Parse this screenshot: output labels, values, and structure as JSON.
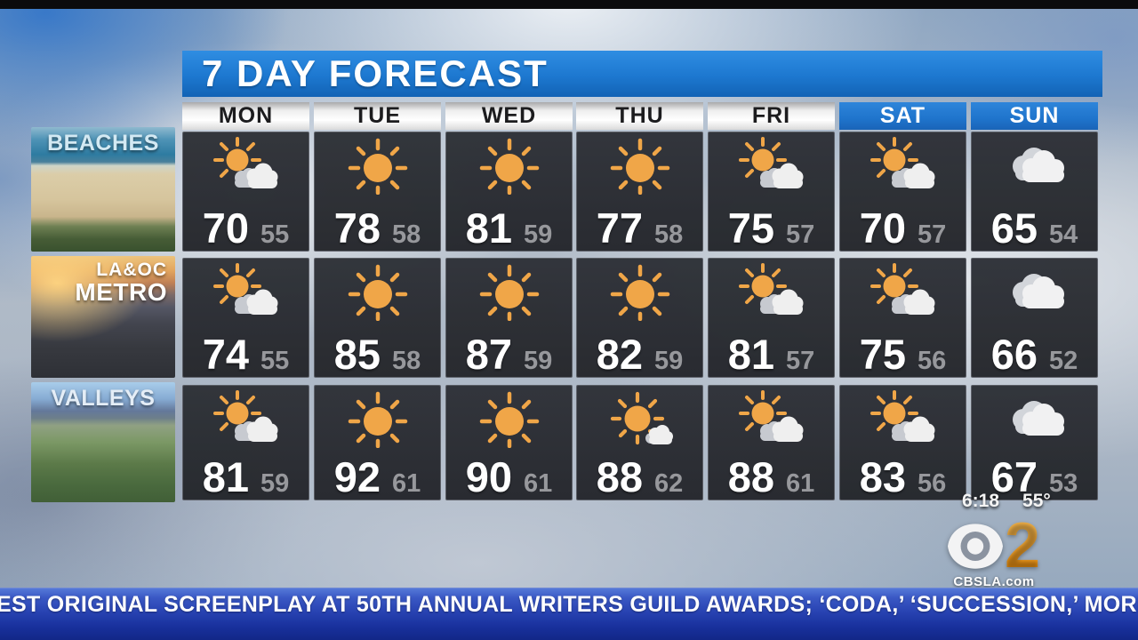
{
  "title_bar": {
    "title": "7 DAY FORECAST"
  },
  "chart_data": {
    "type": "table",
    "title": "7 DAY FORECAST",
    "columns": [
      "MON",
      "TUE",
      "WED",
      "THU",
      "FRI",
      "SAT",
      "SUN"
    ],
    "weekend_columns": [
      "SAT",
      "SUN"
    ],
    "rows": [
      {
        "region": "BEACHES",
        "high": [
          70,
          78,
          81,
          77,
          75,
          70,
          65
        ],
        "low": [
          55,
          58,
          59,
          58,
          57,
          57,
          54
        ],
        "conditions": [
          "mostly_sunny",
          "sunny",
          "sunny",
          "sunny",
          "mostly_sunny",
          "mostly_sunny",
          "cloudy"
        ]
      },
      {
        "region": "LA & OC METRO",
        "high": [
          74,
          85,
          87,
          82,
          81,
          75,
          66
        ],
        "low": [
          55,
          58,
          59,
          59,
          57,
          56,
          52
        ],
        "conditions": [
          "mostly_sunny",
          "sunny",
          "sunny",
          "sunny",
          "mostly_sunny",
          "mostly_sunny",
          "cloudy"
        ]
      },
      {
        "region": "VALLEYS",
        "high": [
          81,
          92,
          90,
          88,
          88,
          83,
          67
        ],
        "low": [
          59,
          61,
          61,
          62,
          61,
          56,
          53
        ],
        "conditions": [
          "mostly_sunny",
          "sunny",
          "sunny",
          "partly_sunny",
          "mostly_sunny",
          "mostly_sunny",
          "cloudy"
        ]
      }
    ]
  },
  "regions": [
    {
      "key": "beaches",
      "label_lines": [
        "BEACHES"
      ],
      "image": "beach-aerial-photo"
    },
    {
      "key": "metro",
      "label_lines": [
        "LA&OC",
        "METRO"
      ],
      "image": "freeway-sunset-photo"
    },
    {
      "key": "valleys",
      "label_lines": [
        "VALLEYS"
      ],
      "image": "valley-aerial-photo"
    }
  ],
  "station": {
    "clock": "6:18",
    "outdoor_temp": "55°",
    "channel_number": "2",
    "website": "CBSLA.com",
    "logo": "cbs-eye-icon"
  },
  "ticker": {
    "text": "EST ORIGINAL SCREENPLAY AT 50TH ANNUAL WRITERS GUILD AWARDS; ‘CODA,’ ‘SUCCESSION,’ MORE WIN"
  },
  "colors": {
    "header_blue": "#1d78d0",
    "weekend_blue": "#1f74cc",
    "cell_charcoal": "#2b2e33",
    "high_temp": "#ffffff",
    "low_temp": "#97989c",
    "sun_orange": "#f0a648",
    "cloud_white": "#efefef",
    "cloud_gray": "#c7cad0",
    "channel_orange": "#f0981c",
    "ticker_blue_top": "#3a58c4",
    "ticker_blue_bottom": "#122787"
  }
}
